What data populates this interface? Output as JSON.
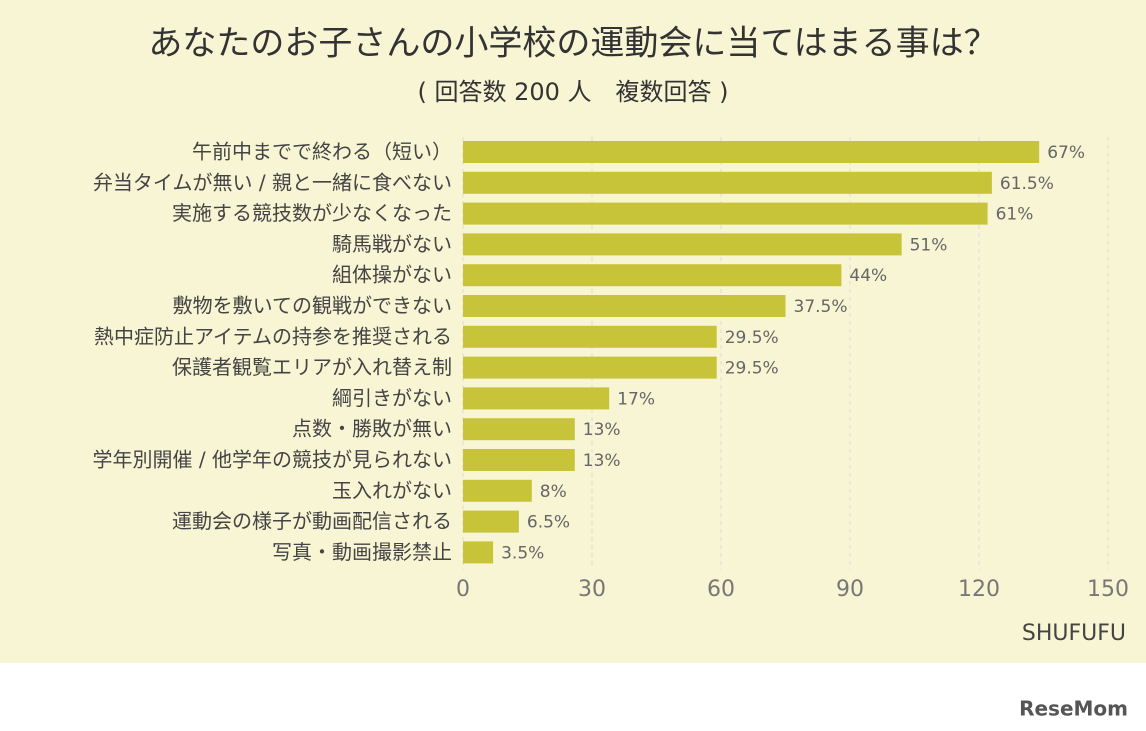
{
  "chart_data": {
    "type": "barh",
    "title": "あなたのお子さんの小学校の運動会に当てはまる事は？",
    "subtitle": "( 回答数 200 人　複数回答 )",
    "source": "SHUFUFU",
    "categories": [
      "午前中までで終わる（短い）",
      "弁当タイムが無い / 親と一緒に食べない",
      "実施する競技数が少なくなった",
      "騎馬戦がない",
      "組体操がない",
      "敷物を敷いての観戦ができない",
      "熱中症防止アイテムの持参を推奨される",
      "保護者観覧エリアが入れ替え制",
      "綱引きがない",
      "点数・勝敗が無い",
      "学年別開催 / 他学年の競技が見られない",
      "玉入れがない",
      "運動会の様子が動画配信される",
      "写真・動画撮影禁止"
    ],
    "values": [
      134,
      123,
      122,
      102,
      88,
      75,
      59,
      59,
      34,
      26,
      26,
      16,
      13,
      7
    ],
    "value_labels": [
      "67%",
      "61.5%",
      "61%",
      "51%",
      "44%",
      "37.5%",
      "29.5%",
      "29.5%",
      "17%",
      "13%",
      "13%",
      "8%",
      "6.5%",
      "3.5%"
    ],
    "color": "#c8c43a",
    "xlim": [
      0,
      150
    ],
    "xticks": [
      0,
      30,
      60,
      90,
      120,
      150
    ],
    "grid": true
  },
  "watermark": "ReseMom"
}
